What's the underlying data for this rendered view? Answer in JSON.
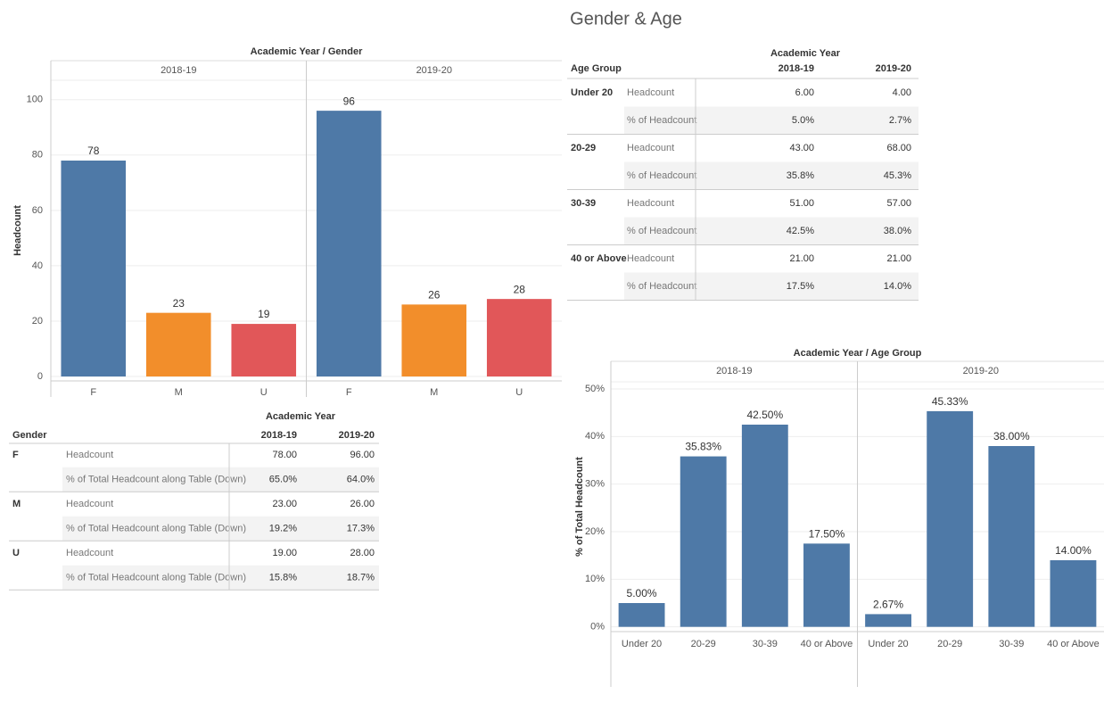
{
  "title": "Gender & Age",
  "chart_data": [
    {
      "type": "bar",
      "title": "Academic Year / Gender",
      "ylabel": "Headcount",
      "categories": [
        "F",
        "M",
        "U"
      ],
      "colors": [
        "#4e79a7",
        "#f28e2b",
        "#e15759"
      ],
      "panels": [
        {
          "name": "2018-19",
          "values": [
            78,
            23,
            19
          ]
        },
        {
          "name": "2019-20",
          "values": [
            96,
            26,
            28
          ]
        }
      ],
      "ylim": [
        -1.6,
        107
      ],
      "yticks": [
        0,
        20,
        40,
        60,
        80,
        100
      ],
      "grid": true
    },
    {
      "type": "bar",
      "title": "Academic Year / Age Group",
      "ylabel": "% of Total Headcount",
      "categories": [
        "Under 20",
        "20-29",
        "30-39",
        "40 or Above"
      ],
      "color": "#4e79a7",
      "panels": [
        {
          "name": "2018-19",
          "values": [
            5,
            35.83,
            42.5,
            17.5
          ],
          "value_labels": [
            "5.00%",
            "35.83%",
            "42.50%",
            "17.50%"
          ]
        },
        {
          "name": "2019-20",
          "values": [
            2.67,
            45.33,
            38,
            14
          ],
          "value_labels": [
            "2.67%",
            "45.33%",
            "38.00%",
            "14.00%"
          ]
        }
      ],
      "ylim": [
        -1,
        51.5
      ],
      "yticks": [
        {
          "value": 0,
          "label": "0%"
        },
        {
          "value": 10,
          "label": "10%"
        },
        {
          "value": 20,
          "label": "20%"
        },
        {
          "value": 30,
          "label": "30%"
        },
        {
          "value": 40,
          "label": "40%"
        },
        {
          "value": 50,
          "label": "50%"
        }
      ],
      "grid": true
    }
  ],
  "tables": [
    {
      "title": "Academic Year",
      "row_header": "Age Group",
      "columns": [
        "2018-19",
        "2019-20"
      ],
      "groups": [
        {
          "name": "Under 20",
          "rows": [
            {
              "label": "Headcount",
              "values": [
                "6.00",
                "4.00"
              ]
            },
            {
              "label": "% of Headcount",
              "values": [
                "5.0%",
                "2.7%"
              ]
            }
          ]
        },
        {
          "name": "20-29",
          "rows": [
            {
              "label": "Headcount",
              "values": [
                "43.00",
                "68.00"
              ]
            },
            {
              "label": "% of Headcount",
              "values": [
                "35.8%",
                "45.3%"
              ]
            }
          ]
        },
        {
          "name": "30-39",
          "rows": [
            {
              "label": "Headcount",
              "values": [
                "51.00",
                "57.00"
              ]
            },
            {
              "label": "% of Headcount",
              "values": [
                "42.5%",
                "38.0%"
              ]
            }
          ]
        },
        {
          "name": "40 or Above",
          "rows": [
            {
              "label": "Headcount",
              "values": [
                "21.00",
                "21.00"
              ]
            },
            {
              "label": "% of Headcount",
              "values": [
                "17.5%",
                "14.0%"
              ]
            }
          ]
        }
      ]
    },
    {
      "title": "Academic Year",
      "row_header": "Gender",
      "columns": [
        "2018-19",
        "2019-20"
      ],
      "groups": [
        {
          "name": "F",
          "rows": [
            {
              "label": "Headcount",
              "values": [
                "78.00",
                "96.00"
              ]
            },
            {
              "label": "% of Total Headcount along Table (Down)",
              "values": [
                "65.0%",
                "64.0%"
              ]
            }
          ]
        },
        {
          "name": "M",
          "rows": [
            {
              "label": "Headcount",
              "values": [
                "23.00",
                "26.00"
              ]
            },
            {
              "label": "% of Total Headcount along Table (Down)",
              "values": [
                "19.2%",
                "17.3%"
              ]
            }
          ]
        },
        {
          "name": "U",
          "rows": [
            {
              "label": "Headcount",
              "values": [
                "19.00",
                "28.00"
              ]
            },
            {
              "label": "% of Total Headcount along Table (Down)",
              "values": [
                "15.8%",
                "18.7%"
              ]
            }
          ]
        }
      ]
    }
  ]
}
